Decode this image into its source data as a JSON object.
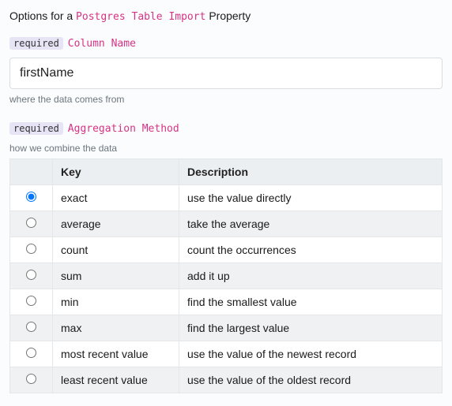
{
  "heading": {
    "prefix": "Options for a",
    "mono": "Postgres Table Import",
    "suffix": "Property"
  },
  "required_badge": "required",
  "column_name": {
    "label": "Column Name",
    "value": "firstName",
    "helper": "where the data comes from"
  },
  "aggregation": {
    "label": "Aggregation Method",
    "helper": "how we combine the data",
    "headers": {
      "radio": "",
      "key": "Key",
      "description": "Description"
    },
    "selected_index": 0,
    "rows": [
      {
        "key": "exact",
        "description": "use the value directly"
      },
      {
        "key": "average",
        "description": "take the average"
      },
      {
        "key": "count",
        "description": "count the occurrences"
      },
      {
        "key": "sum",
        "description": "add it up"
      },
      {
        "key": "min",
        "description": "find the smallest value"
      },
      {
        "key": "max",
        "description": "find the largest value"
      },
      {
        "key": "most recent value",
        "description": "use the value of the newest record"
      },
      {
        "key": "least recent value",
        "description": "use the value of the oldest record"
      }
    ]
  }
}
